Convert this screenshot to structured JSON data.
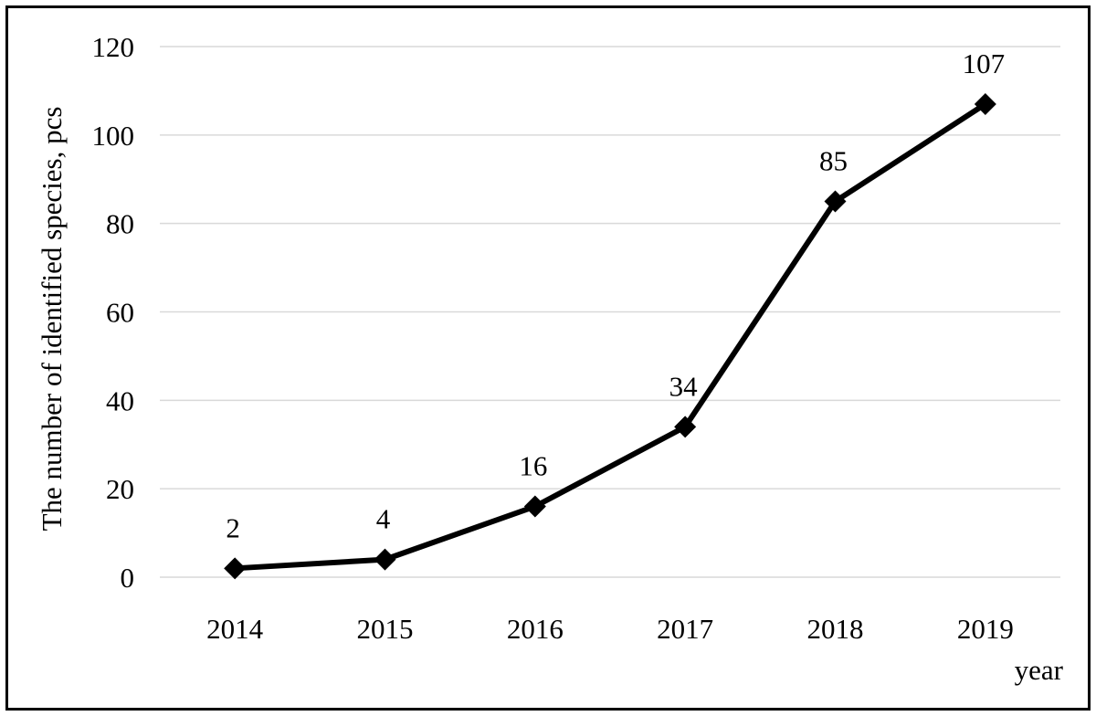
{
  "chart_data": {
    "type": "line",
    "categories": [
      "2014",
      "2015",
      "2016",
      "2017",
      "2018",
      "2019"
    ],
    "series": [
      {
        "values": [
          2,
          4,
          16,
          34,
          85,
          107
        ]
      }
    ],
    "data_labels": [
      "2",
      "4",
      "16",
      "34",
      "85",
      "107"
    ],
    "title": "",
    "xlabel": "year",
    "ylabel": "The number of identified species, pcs",
    "ylim": [
      0,
      120
    ],
    "yticks": [
      0,
      20,
      40,
      60,
      80,
      100,
      120
    ],
    "ytick_labels": [
      "0",
      "20",
      "40",
      "60",
      "80",
      "100",
      "120"
    ],
    "grid": "horizontal",
    "legend": "none",
    "marker": "diamond",
    "line_color": "#000000",
    "grid_color": "#d9d9d9"
  }
}
